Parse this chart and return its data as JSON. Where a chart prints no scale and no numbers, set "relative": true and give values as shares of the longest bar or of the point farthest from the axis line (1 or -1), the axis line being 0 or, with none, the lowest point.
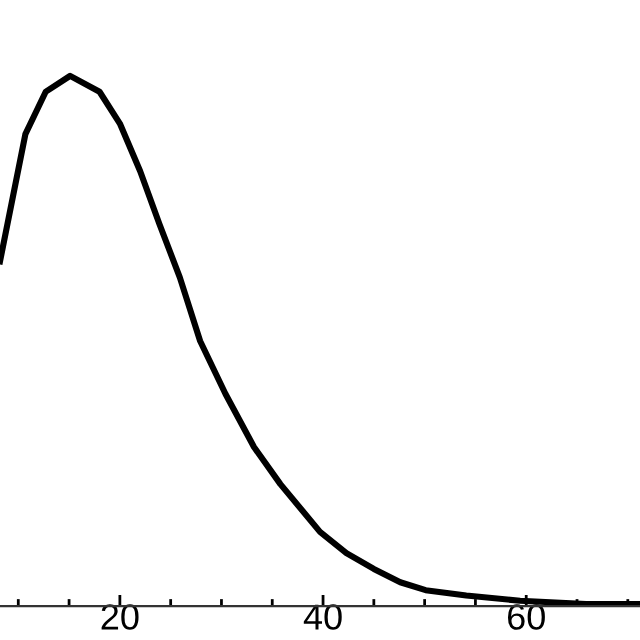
{
  "chart_data": {
    "type": "line",
    "relative": true,
    "x": [
      8.2,
      10.7,
      12.7,
      15.1,
      18.0,
      20.0,
      22.0,
      23.9,
      25.9,
      27.9,
      30.4,
      33.2,
      35.8,
      39.7,
      42.3,
      45.0,
      47.6,
      50.1,
      54.1,
      59.4,
      65.9,
      71.2
    ],
    "series": [
      {
        "color": "#000000",
        "values": [
          0.65,
          0.89,
          0.97,
          1.0,
          0.97,
          0.91,
          0.82,
          0.72,
          0.62,
          0.5,
          0.4,
          0.3,
          0.23,
          0.14,
          0.1,
          0.07,
          0.045,
          0.03,
          0.02,
          0.01,
          0.004,
          0.004
        ]
      }
    ],
    "xlim": [
      8.2,
      71.2
    ],
    "xticks": [
      {
        "value": 10,
        "label": null
      },
      {
        "value": 15,
        "label": null
      },
      20,
      {
        "value": 25,
        "label": null
      },
      {
        "value": 30,
        "label": null
      },
      {
        "value": 35,
        "label": null
      },
      40,
      {
        "value": 45,
        "label": null
      },
      {
        "value": 50,
        "label": null
      },
      {
        "value": 55,
        "label": null
      },
      60,
      {
        "value": 65,
        "label": null
      },
      {
        "value": 70,
        "label": null
      }
    ],
    "grid": false,
    "legend": false,
    "line_style": "solid",
    "marker": "none"
  }
}
